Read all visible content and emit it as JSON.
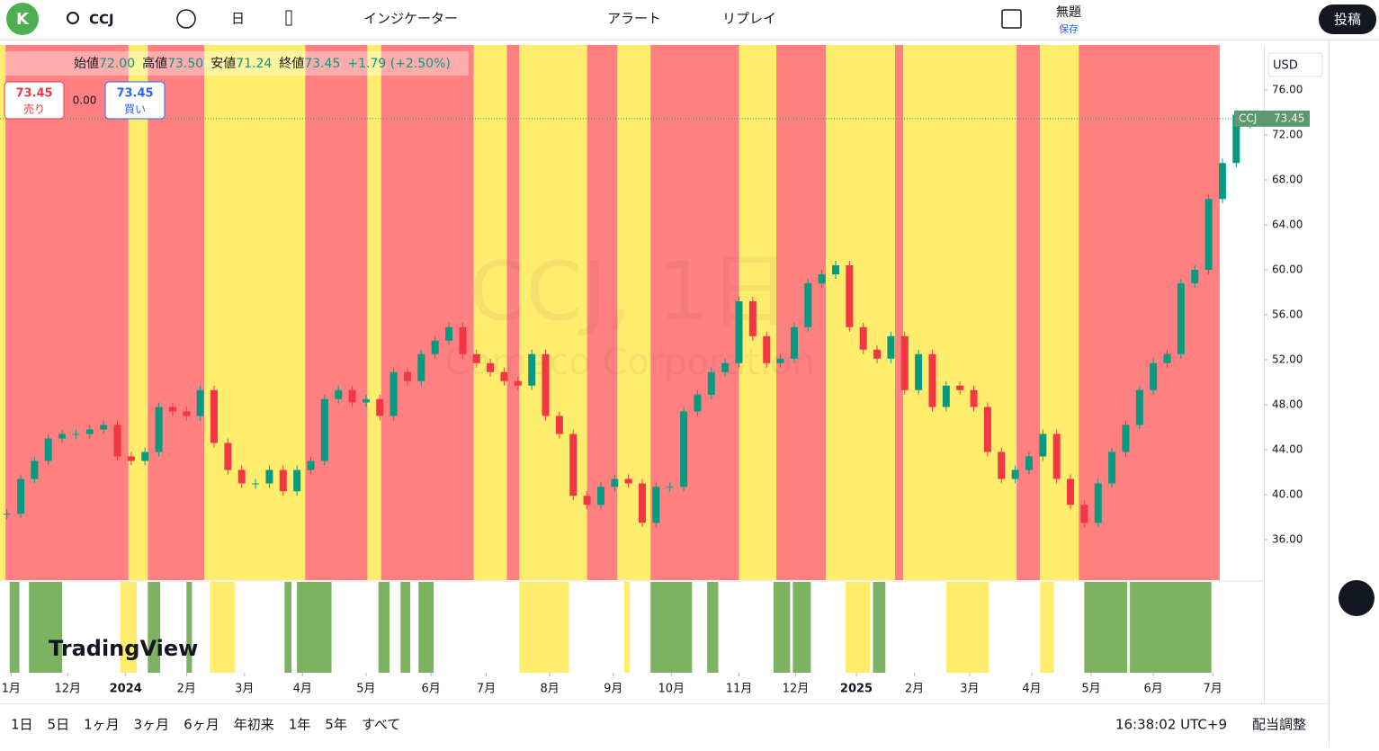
{
  "toolbar": {
    "avatar": "K",
    "symbol": "CCJ",
    "interval": "日",
    "indicators": "インジケーター",
    "alert": "アラート",
    "replay": "リプレイ",
    "layout": "無題",
    "save": "保存",
    "publish": "投稿"
  },
  "legend": {
    "items": [
      {
        "label": "始値",
        "value": "72.00"
      },
      {
        "label": "高値",
        "value": "73.50"
      },
      {
        "label": "安値",
        "value": "71.24"
      },
      {
        "label": "終値",
        "value": "73.45"
      }
    ],
    "change": "+1.79 (+2.50%)"
  },
  "trade": {
    "sell_price": "73.45",
    "sell": "売り",
    "spread": "0.00",
    "buy_price": "73.45",
    "buy": "買い"
  },
  "currency": "USD",
  "price_tag": {
    "symbol": "CCJ",
    "price": 73.45,
    "label": "73.45"
  },
  "watermark": {
    "title": "CCJ, 1日",
    "name": "Cameco Corporation"
  },
  "logo": "TradingView",
  "chart_data": {
    "type": "candlestick",
    "closes": [
      38.3,
      41.4,
      43,
      45,
      45.4,
      45.4,
      45.8,
      46.2,
      43.4,
      43,
      43.8,
      47.8,
      47.4,
      47,
      49.3,
      44.6,
      42.2,
      41,
      41,
      42.2,
      40.3,
      42.2,
      43,
      48.5,
      49.3,
      48.2,
      48.5,
      47,
      50.9,
      50.1,
      52.5,
      53.7,
      54.9,
      52.5,
      51.7,
      50.9,
      50.1,
      49.7,
      52.5,
      47,
      45.4,
      39.9,
      39.1,
      40.7,
      41.4,
      41,
      37.5,
      40.7,
      40.7,
      47.4,
      48.9,
      50.9,
      51.7,
      57.2,
      54.1,
      51.7,
      52.1,
      54.9,
      58.8,
      59.6,
      60.4,
      54.9,
      52.9,
      52.1,
      54.1,
      49.3,
      52.5,
      47.8,
      49.7,
      49.3,
      47.8,
      43.8,
      41.4,
      42.2,
      43.4,
      45.4,
      41.4,
      39.1,
      37.5,
      41,
      43.8,
      46.2,
      49.3,
      51.7,
      52.5,
      58.8,
      60,
      66.3,
      69.5,
      73.8,
      73
    ],
    "bands": [
      {
        "from": 0,
        "to": 0.4,
        "color": "#ffee6e"
      },
      {
        "from": 0.4,
        "to": 9.3,
        "color": "#ff8080"
      },
      {
        "from": 9.3,
        "to": 10.7,
        "color": "#ffee6e"
      },
      {
        "from": 10.7,
        "to": 14.8,
        "color": "#ff8080"
      },
      {
        "from": 14.8,
        "to": 22.1,
        "color": "#ffee6e"
      },
      {
        "from": 22.1,
        "to": 26.6,
        "color": "#ff8080"
      },
      {
        "from": 26.6,
        "to": 27.6,
        "color": "#ffee6e"
      },
      {
        "from": 27.6,
        "to": 34.3,
        "color": "#ff8080"
      },
      {
        "from": 34.3,
        "to": 36.7,
        "color": "#ffee6e"
      },
      {
        "from": 36.7,
        "to": 37.6,
        "color": "#ff8080"
      },
      {
        "from": 37.6,
        "to": 42.5,
        "color": "#ffee6e"
      },
      {
        "from": 42.5,
        "to": 44.7,
        "color": "#ff8080"
      },
      {
        "from": 44.7,
        "to": 47.1,
        "color": "#ffee6e"
      },
      {
        "from": 47.1,
        "to": 53.5,
        "color": "#ff8080"
      },
      {
        "from": 53.5,
        "to": 56.2,
        "color": "#ffee6e"
      },
      {
        "from": 56.2,
        "to": 59.8,
        "color": "#ff8080"
      },
      {
        "from": 59.8,
        "to": 64.8,
        "color": "#ffee6e"
      },
      {
        "from": 64.8,
        "to": 65.4,
        "color": "#ff8080"
      },
      {
        "from": 65.4,
        "to": 73.6,
        "color": "#ffee6e"
      },
      {
        "from": 73.6,
        "to": 75.3,
        "color": "#ff8080"
      },
      {
        "from": 75.3,
        "to": 78.1,
        "color": "#ffee6e"
      },
      {
        "from": 78.1,
        "to": 88.3,
        "color": "#ff8080"
      }
    ],
    "lower_bands": [
      {
        "from": 0.7,
        "to": 1.4,
        "color": "#7cb261"
      },
      {
        "from": 2.1,
        "to": 4.5,
        "color": "#7cb261"
      },
      {
        "from": 8.7,
        "to": 9.9,
        "color": "#ffee6e"
      },
      {
        "from": 10.7,
        "to": 11.6,
        "color": "#7cb261"
      },
      {
        "from": 13.5,
        "to": 13.9,
        "color": "#7cb261"
      },
      {
        "from": 15.2,
        "to": 17,
        "color": "#ffee6e"
      },
      {
        "from": 20.6,
        "to": 21.1,
        "color": "#7cb261"
      },
      {
        "from": 21.5,
        "to": 24,
        "color": "#7cb261"
      },
      {
        "from": 27.4,
        "to": 28.2,
        "color": "#7cb261"
      },
      {
        "from": 29,
        "to": 29.7,
        "color": "#7cb261"
      },
      {
        "from": 30.3,
        "to": 31.4,
        "color": "#7cb261"
      },
      {
        "from": 37.6,
        "to": 41.2,
        "color": "#ffee6e"
      },
      {
        "from": 45.2,
        "to": 45.6,
        "color": "#ffee6e"
      },
      {
        "from": 47.1,
        "to": 50.1,
        "color": "#7cb261"
      },
      {
        "from": 51.2,
        "to": 52,
        "color": "#7cb261"
      },
      {
        "from": 56,
        "to": 57.2,
        "color": "#7cb261"
      },
      {
        "from": 57.4,
        "to": 58.7,
        "color": "#7cb261"
      },
      {
        "from": 61.2,
        "to": 63,
        "color": "#ffee6e"
      },
      {
        "from": 63.2,
        "to": 64.1,
        "color": "#7cb261"
      },
      {
        "from": 68.5,
        "to": 71.6,
        "color": "#ffee6e"
      },
      {
        "from": 75.3,
        "to": 76.3,
        "color": "#ffee6e"
      },
      {
        "from": 78.5,
        "to": 81.6,
        "color": "#7cb261"
      },
      {
        "from": 81.8,
        "to": 87.7,
        "color": "#7cb261"
      }
    ],
    "xlim": [
      0,
      91.5
    ],
    "ylim": [
      32.4,
      80
    ],
    "xticks": [
      {
        "value": 0.8,
        "label": "1月"
      },
      {
        "value": 4.9,
        "label": "12月"
      },
      {
        "value": 9.1,
        "label": "2024"
      },
      {
        "value": 13.5,
        "label": "2月"
      },
      {
        "value": 17.7,
        "label": "3月"
      },
      {
        "value": 21.9,
        "label": "4月"
      },
      {
        "value": 26.5,
        "label": "5月"
      },
      {
        "value": 31.2,
        "label": "6月"
      },
      {
        "value": 35.2,
        "label": "7月"
      },
      {
        "value": 39.8,
        "label": "8月"
      },
      {
        "value": 44.4,
        "label": "9月"
      },
      {
        "value": 48.6,
        "label": "10月"
      },
      {
        "value": 53.5,
        "label": "11月"
      },
      {
        "value": 57.6,
        "label": "12月"
      },
      {
        "value": 62,
        "label": "2025"
      },
      {
        "value": 66.2,
        "label": "2月"
      },
      {
        "value": 70.2,
        "label": "3月"
      },
      {
        "value": 74.7,
        "label": "4月"
      },
      {
        "value": 79,
        "label": "5月"
      },
      {
        "value": 83.5,
        "label": "6月"
      },
      {
        "value": 87.8,
        "label": "7月"
      }
    ],
    "yticks": [
      {
        "value": 76,
        "label": "76.00"
      },
      {
        "value": 72,
        "label": "72.00"
      },
      {
        "value": 68,
        "label": "68.00"
      },
      {
        "value": 64,
        "label": "64.00"
      },
      {
        "value": 60,
        "label": "60.00"
      },
      {
        "value": 56,
        "label": "56.00"
      },
      {
        "value": 52,
        "label": "52.00"
      },
      {
        "value": 48,
        "label": "48.00"
      },
      {
        "value": 44,
        "label": "44.00"
      },
      {
        "value": 40,
        "label": "40.00"
      },
      {
        "value": 36,
        "label": "36.00"
      }
    ]
  },
  "bottom": {
    "ranges": [
      "1日",
      "5日",
      "1ヶ月",
      "3ヶ月",
      "6ヶ月",
      "年初来",
      "1年",
      "5年",
      "すべて"
    ],
    "time": "16:38:02 UTC+9",
    "adjust": "配当調整"
  }
}
